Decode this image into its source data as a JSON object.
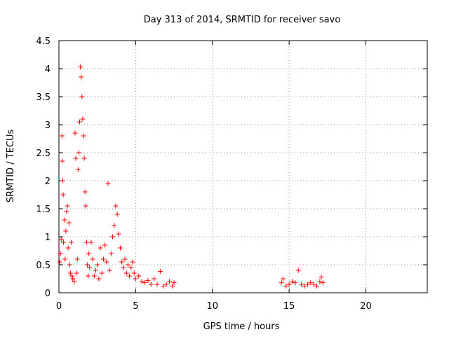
{
  "chart_data": {
    "type": "scatter",
    "title": "Day 313 of 2014, SRMTID for receiver savo",
    "xlabel": "GPS time / hours",
    "ylabel": "SRMTID / TECUs",
    "xlim": [
      0,
      24
    ],
    "ylim": [
      0,
      4.5
    ],
    "x_ticks": [
      0,
      5,
      10,
      15,
      20
    ],
    "x_tick_labels": [
      "0",
      "5",
      "10",
      "15",
      "20"
    ],
    "y_ticks": [
      0,
      0.5,
      1,
      1.5,
      2,
      2.5,
      3,
      3.5,
      4,
      4.5
    ],
    "y_tick_labels": [
      "0",
      "0.5",
      "1",
      "1.5",
      "2",
      "2.5",
      "3",
      "3.5",
      "4",
      "4.5"
    ],
    "grid": true,
    "marker": "+",
    "color": "#ff0000",
    "series": [
      {
        "name": "SRMTID",
        "points": [
          [
            0.05,
            0.55
          ],
          [
            0.1,
            0.7
          ],
          [
            0.15,
            0.95
          ],
          [
            0.2,
            2.8
          ],
          [
            0.22,
            2.35
          ],
          [
            0.25,
            2.0
          ],
          [
            0.28,
            1.75
          ],
          [
            0.3,
            0.9
          ],
          [
            0.35,
            1.3
          ],
          [
            0.4,
            0.6
          ],
          [
            0.45,
            1.1
          ],
          [
            0.5,
            1.45
          ],
          [
            0.55,
            1.55
          ],
          [
            0.6,
            0.8
          ],
          [
            0.65,
            1.25
          ],
          [
            0.7,
            0.5
          ],
          [
            0.75,
            0.35
          ],
          [
            0.8,
            0.9
          ],
          [
            0.85,
            0.3
          ],
          [
            0.9,
            0.25
          ],
          [
            1.0,
            0.2
          ],
          [
            1.05,
            2.85
          ],
          [
            1.1,
            2.4
          ],
          [
            1.15,
            0.35
          ],
          [
            1.2,
            0.6
          ],
          [
            1.25,
            2.2
          ],
          [
            1.3,
            2.5
          ],
          [
            1.35,
            3.05
          ],
          [
            1.4,
            4.03
          ],
          [
            1.45,
            3.85
          ],
          [
            1.5,
            3.5
          ],
          [
            1.55,
            3.1
          ],
          [
            1.6,
            2.8
          ],
          [
            1.65,
            2.4
          ],
          [
            1.7,
            1.8
          ],
          [
            1.75,
            1.55
          ],
          [
            1.8,
            0.9
          ],
          [
            1.85,
            0.5
          ],
          [
            1.9,
            0.3
          ],
          [
            1.95,
            0.7
          ],
          [
            2.0,
            0.45
          ],
          [
            2.1,
            0.9
          ],
          [
            2.2,
            0.6
          ],
          [
            2.3,
            0.3
          ],
          [
            2.4,
            0.4
          ],
          [
            2.5,
            0.5
          ],
          [
            2.6,
            0.25
          ],
          [
            2.7,
            0.8
          ],
          [
            2.8,
            0.35
          ],
          [
            2.9,
            0.6
          ],
          [
            3.0,
            0.85
          ],
          [
            3.1,
            0.55
          ],
          [
            3.2,
            1.95
          ],
          [
            3.3,
            0.4
          ],
          [
            3.4,
            0.7
          ],
          [
            3.5,
            1.0
          ],
          [
            3.6,
            1.2
          ],
          [
            3.7,
            1.55
          ],
          [
            3.8,
            1.4
          ],
          [
            3.9,
            1.05
          ],
          [
            4.0,
            0.8
          ],
          [
            4.1,
            0.55
          ],
          [
            4.2,
            0.45
          ],
          [
            4.3,
            0.6
          ],
          [
            4.4,
            0.35
          ],
          [
            4.5,
            0.5
          ],
          [
            4.6,
            0.3
          ],
          [
            4.7,
            0.45
          ],
          [
            4.8,
            0.55
          ],
          [
            4.9,
            0.35
          ],
          [
            5.0,
            0.25
          ],
          [
            5.2,
            0.3
          ],
          [
            5.4,
            0.2
          ],
          [
            5.6,
            0.18
          ],
          [
            5.8,
            0.22
          ],
          [
            6.0,
            0.15
          ],
          [
            6.2,
            0.25
          ],
          [
            6.4,
            0.15
          ],
          [
            6.6,
            0.38
          ],
          [
            6.8,
            0.12
          ],
          [
            7.0,
            0.15
          ],
          [
            7.2,
            0.2
          ],
          [
            7.4,
            0.12
          ],
          [
            7.5,
            0.18
          ],
          [
            14.5,
            0.18
          ],
          [
            14.6,
            0.25
          ],
          [
            14.8,
            0.12
          ],
          [
            15.0,
            0.15
          ],
          [
            15.2,
            0.2
          ],
          [
            15.4,
            0.18
          ],
          [
            15.6,
            0.4
          ],
          [
            15.8,
            0.15
          ],
          [
            16.0,
            0.12
          ],
          [
            16.2,
            0.15
          ],
          [
            16.4,
            0.18
          ],
          [
            16.6,
            0.15
          ],
          [
            16.8,
            0.12
          ],
          [
            17.0,
            0.2
          ],
          [
            17.1,
            0.28
          ],
          [
            17.2,
            0.18
          ]
        ]
      }
    ]
  }
}
